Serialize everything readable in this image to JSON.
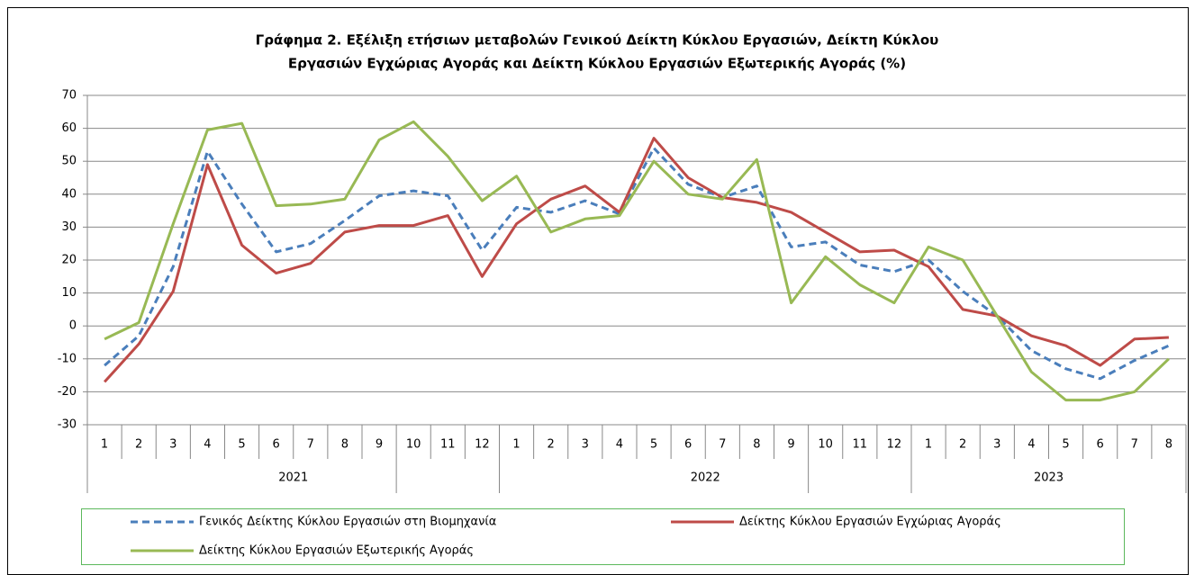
{
  "chart_data": {
    "type": "line",
    "title": [
      "Γράφημα 2. Εξέλιξη ετήσιων μεταβολών Γενικού Δείκτη Κύκλου Εργασιών,  Δείκτη Κύκλου",
      "Εργασιών Εγχώριας Αγοράς και Δείκτη Κύκλου Εργασιών Εξωτερικής Αγοράς (%)"
    ],
    "categories": [
      "1",
      "2",
      "3",
      "4",
      "5",
      "6",
      "7",
      "8",
      "9",
      "10",
      "11",
      "12",
      "1",
      "2",
      "3",
      "4",
      "5",
      "6",
      "7",
      "8",
      "9",
      "10",
      "11",
      "12",
      "1",
      "2",
      "3",
      "4",
      "5",
      "6",
      "7",
      "8"
    ],
    "groups": [
      "2021",
      "2022",
      "2023"
    ],
    "series": [
      {
        "name": "Γενικός Δείκτης Κύκλου Εργασιών στη Βιομηχανία",
        "color": "#4a7ebb",
        "dash": true,
        "values": [
          -12,
          -3,
          18,
          53,
          37,
          22.5,
          25,
          32,
          39.5,
          41,
          39.5,
          23,
          36,
          34.5,
          38,
          34,
          54,
          43,
          39,
          42.5,
          24,
          25.5,
          18.5,
          16.5,
          20,
          10.5,
          3,
          -7.5,
          -13,
          -16,
          -10.5,
          -6
        ]
      },
      {
        "name": "Δείκτης Κύκλου Εργασιών Εγχώριας Αγοράς",
        "color": "#be4b48",
        "dash": false,
        "values": [
          -17,
          -5.5,
          10.5,
          49,
          24.5,
          16,
          19,
          28.5,
          30.5,
          30.5,
          33.5,
          15,
          31,
          38.5,
          42.5,
          34.5,
          57,
          45,
          39,
          37.5,
          34.5,
          28.5,
          22.5,
          23,
          18,
          5,
          3,
          -3,
          -6,
          -12,
          -4,
          -3.5
        ]
      },
      {
        "name": "Δείκτης Κύκλου Εργασιών Εξωτερικής Αγοράς",
        "color": "#98b954",
        "dash": false,
        "values": [
          -4,
          1,
          31,
          59.5,
          61.5,
          36.5,
          37,
          38.5,
          56.5,
          62,
          51.5,
          38,
          45.5,
          28.5,
          32.5,
          33.5,
          50,
          40,
          38.5,
          50.5,
          7,
          21,
          12.5,
          7,
          24,
          20,
          3,
          -14,
          -22.5,
          -22.5,
          -20,
          -10
        ]
      }
    ],
    "ylim": [
      -30,
      70
    ],
    "yticks": [
      -30,
      -20,
      -10,
      0,
      10,
      20,
      30,
      40,
      50,
      60,
      70
    ],
    "grid": true
  }
}
